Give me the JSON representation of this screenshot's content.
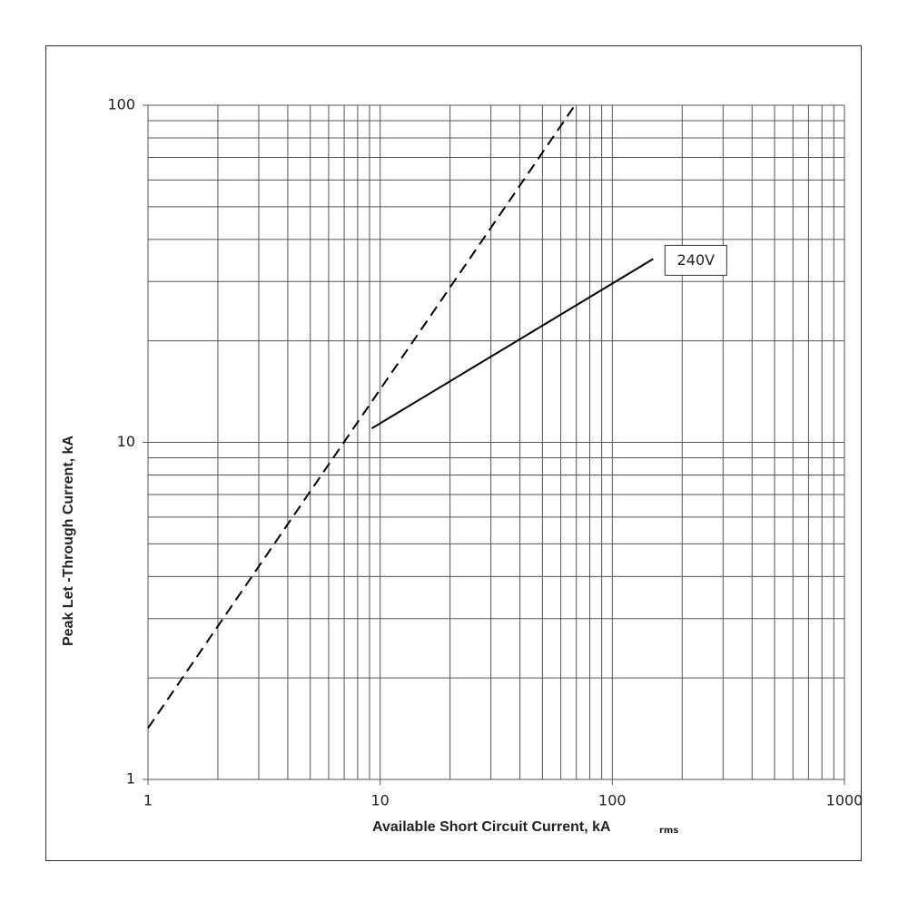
{
  "chart_data": {
    "type": "line",
    "xlabel": "Available Short Circuit Current, kA",
    "xlabel_sub": "rms",
    "ylabel": "Peak Let -Through Current, kA",
    "log_x": true,
    "log_y": true,
    "grid": true,
    "xlim": [
      1,
      1000
    ],
    "ylim": [
      1,
      100
    ],
    "xticks": [
      1,
      10,
      100,
      1000
    ],
    "yticks": [
      1,
      10,
      100
    ],
    "xminorticks": [
      2,
      3,
      4,
      5,
      6,
      7,
      8,
      9,
      20,
      30,
      40,
      50,
      60,
      70,
      80,
      90,
      200,
      300,
      400,
      500,
      600,
      700,
      800,
      900
    ],
    "yminorticks": [
      2,
      3,
      4,
      5,
      6,
      7,
      8,
      9,
      20,
      30,
      40,
      50,
      60,
      70,
      80,
      90
    ],
    "series": [
      {
        "x": [
          1,
          69
        ],
        "values": [
          1.42,
          100
        ],
        "color": "#000000",
        "dashed": true
      },
      {
        "name": "240V",
        "x": [
          9.2,
          150
        ],
        "values": [
          11,
          35
        ],
        "color": "#000000",
        "dashed": false
      }
    ]
  }
}
